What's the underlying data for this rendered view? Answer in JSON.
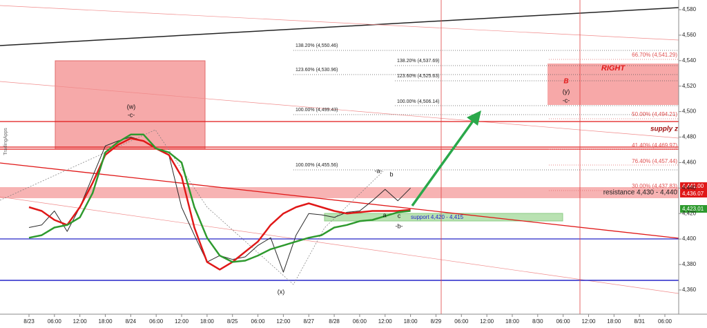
{
  "chart_data": {
    "type": "line",
    "watermark": "TradingApps",
    "categories": [
      "8/23",
      null,
      "06:00",
      null,
      "12:00",
      null,
      "18:00",
      null,
      "8/24",
      null,
      "06:00",
      null,
      "12:00",
      null,
      "18:00",
      null,
      "8/25",
      null,
      "06:00",
      null,
      "12:00",
      null,
      "8/27",
      null,
      "8/28",
      null,
      "06:00",
      null,
      "12:00",
      null,
      "18:00",
      null,
      "8/29",
      null,
      "06:00",
      null,
      "12:00",
      null,
      "18:00",
      null,
      "8/30",
      null,
      "06:00",
      null,
      "12:00",
      null,
      "18:00",
      null,
      "8/31",
      null,
      "06:00"
    ],
    "ylim": [
      4341,
      4587.6
    ],
    "yticks": [
      {
        "value": 4360,
        "label": "4,360"
      },
      {
        "value": 4380,
        "label": "4,380"
      },
      {
        "value": 4400,
        "label": "4,400"
      },
      {
        "value": 4420,
        "label": "4,420"
      },
      {
        "value": 4440,
        "label": "4,440"
      },
      {
        "value": 4460,
        "label": "4,460"
      },
      {
        "value": 4480,
        "label": "4,480"
      },
      {
        "value": 4500,
        "label": "4,500"
      },
      {
        "value": 4520,
        "label": "4,520"
      },
      {
        "value": 4540,
        "label": "4,540"
      },
      {
        "value": 4560,
        "label": "4,560"
      },
      {
        "value": 4580,
        "label": "4,580"
      }
    ],
    "grid": false,
    "series": [
      {
        "color": "#2a2a2a",
        "width": 1,
        "values": [
          4409,
          4411,
          4422,
          4406,
          4425,
          4449,
          4473,
          4477,
          4480,
          4477,
          4471,
          4466,
          4425,
          4403,
          4382,
          4387,
          4384,
          4386,
          4395,
          4401,
          4374,
          4403,
          4420,
          4419,
          4417,
          4421,
          4422,
          4430,
          4439,
          4430,
          4440,
          null,
          null,
          null,
          null,
          null,
          null,
          null,
          null,
          null,
          null,
          null,
          null,
          null,
          null,
          null,
          null,
          null,
          null,
          null,
          null
        ]
      },
      {
        "color": "#e01818",
        "width": 2.5,
        "values": [
          4425,
          4422,
          4415,
          4411,
          4425,
          4444,
          4466,
          4474,
          4479,
          4477,
          4471,
          4466,
          4449,
          4409,
          4382,
          4376,
          4382,
          4390,
          4398,
          4411,
          4420,
          4425,
          4428,
          4425,
          4422,
          4420,
          4421,
          4422,
          4422,
          4422,
          4423,
          null,
          null,
          null,
          null,
          null,
          null,
          null,
          null,
          null,
          null,
          null,
          null,
          null,
          null,
          null,
          null,
          null,
          null,
          null,
          null
        ]
      },
      {
        "color": "#2e9a2e",
        "width": 2.5,
        "values": [
          4401,
          4403,
          4409,
          4411,
          4417,
          4436,
          4468,
          4476,
          4482,
          4482,
          4471,
          4468,
          4460,
          4425,
          4401,
          4387,
          4382,
          4383,
          4387,
          4392,
          4395,
          4398,
          4401,
          4403,
          4409,
          4411,
          4414,
          4415,
          4418,
          4421,
          4422,
          null,
          null,
          null,
          null,
          null,
          null,
          null,
          null,
          null,
          null,
          null,
          null,
          null,
          null,
          null,
          null,
          null,
          null,
          null,
          null
        ]
      }
    ],
    "price_tags": [
      "4,441.00",
      "4,436.07",
      "4,423.01"
    ],
    "fib_black": [
      "138.20% (4,550.46)",
      "123.60% (4,530.96)",
      "100.00% (4,499.43)",
      "100.00% (4,455.56)",
      "138.20% (4,537.69)",
      "123.60% (4,525.63)",
      "100.00% (4,506.14)"
    ],
    "fib_red": [
      "66.70% (4,541.29)",
      "50.00% (4,494.21)",
      "41.40% (4,469.97)",
      "76.40% (4,457.44)",
      "30.00% (4,437.83)"
    ],
    "waves": [
      "(w)",
      "-c-",
      "(x)",
      "-a-",
      "b",
      "a",
      "c",
      "-b-",
      "B",
      "(y)",
      "-c-"
    ],
    "right_label": "RIGHT",
    "supply_label": "supply z",
    "resistance_label": "resistance  4,430 - 4,440",
    "support_label": "support 4,420 - 4,415"
  }
}
